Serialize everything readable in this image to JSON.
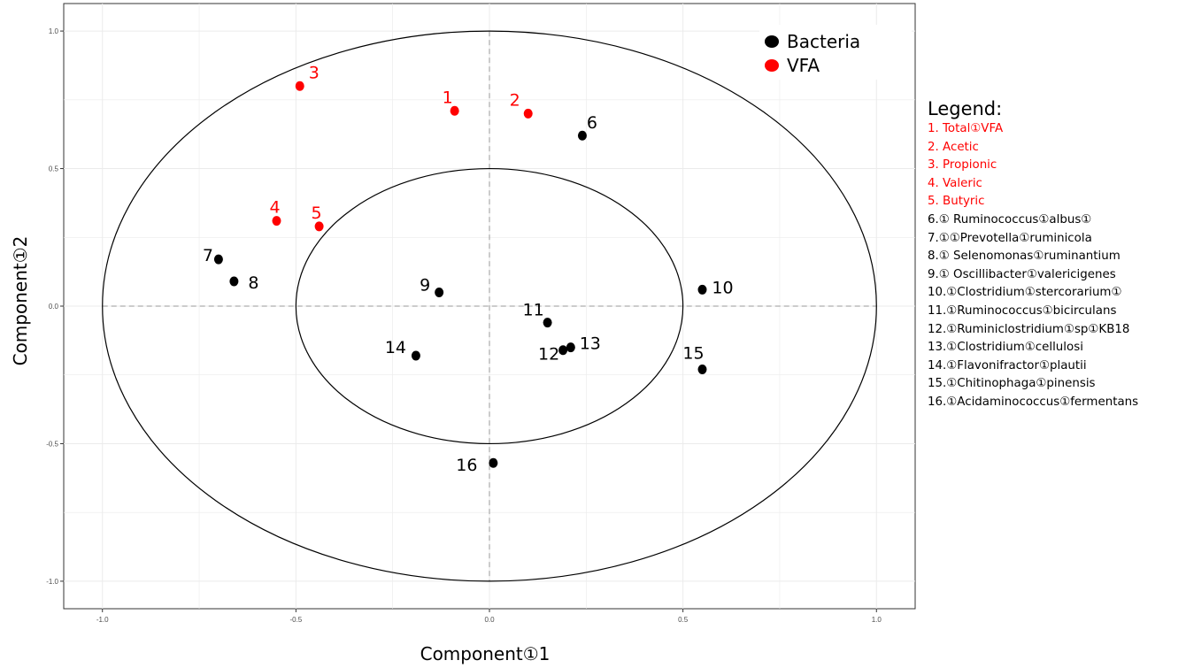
{
  "chart_data": {
    "type": "scatter",
    "xlabel": "Component①1",
    "ylabel": "Component①2",
    "xlim": [
      -1.1,
      1.1
    ],
    "ylim": [
      -1.1,
      1.1
    ],
    "x_ticks": [
      "-1.0",
      "-0.5",
      "0.0",
      "0.5",
      "1.0"
    ],
    "y_ticks": [
      "1.0",
      "0.5",
      "0.0",
      "-0.5",
      "-1.0"
    ],
    "grid": true,
    "reference_lines": {
      "x": 0,
      "y": 0,
      "style": "dashed"
    },
    "circles": [
      {
        "radius": 1.0
      },
      {
        "radius": 0.5
      }
    ],
    "groups": [
      {
        "name": "Bacteria",
        "color": "#000000"
      },
      {
        "name": "VFA",
        "color": "#ff0000"
      }
    ],
    "points": [
      {
        "label": "1",
        "group": "VFA",
        "x": -0.09,
        "y": 0.71
      },
      {
        "label": "2",
        "group": "VFA",
        "x": 0.1,
        "y": 0.7
      },
      {
        "label": "3",
        "group": "VFA",
        "x": -0.49,
        "y": 0.8
      },
      {
        "label": "4",
        "group": "VFA",
        "x": -0.55,
        "y": 0.31
      },
      {
        "label": "5",
        "group": "VFA",
        "x": -0.44,
        "y": 0.29
      },
      {
        "label": "6",
        "group": "Bacteria",
        "x": 0.24,
        "y": 0.62
      },
      {
        "label": "7",
        "group": "Bacteria",
        "x": -0.7,
        "y": 0.17
      },
      {
        "label": "8",
        "group": "Bacteria",
        "x": -0.66,
        "y": 0.09
      },
      {
        "label": "9",
        "group": "Bacteria",
        "x": -0.13,
        "y": 0.05
      },
      {
        "label": "10",
        "group": "Bacteria",
        "x": 0.55,
        "y": 0.06
      },
      {
        "label": "11",
        "group": "Bacteria",
        "x": 0.15,
        "y": -0.06
      },
      {
        "label": "12",
        "group": "Bacteria",
        "x": 0.19,
        "y": -0.16
      },
      {
        "label": "13",
        "group": "Bacteria",
        "x": 0.21,
        "y": -0.15
      },
      {
        "label": "14",
        "group": "Bacteria",
        "x": -0.19,
        "y": -0.18
      },
      {
        "label": "15",
        "group": "Bacteria",
        "x": 0.55,
        "y": -0.23
      },
      {
        "label": "16",
        "group": "Bacteria",
        "x": 0.01,
        "y": -0.57
      }
    ],
    "legend": {
      "placement": "top-right",
      "entries": [
        "Bacteria",
        "VFA"
      ]
    }
  },
  "side_legend": {
    "title": "Legend:",
    "items": [
      {
        "text": "1.  Total①VFA",
        "color": "#ff0000"
      },
      {
        "text": "2.  Acetic",
        "color": "#ff0000"
      },
      {
        "text": "3.  Propionic",
        "color": "#ff0000"
      },
      {
        "text": "4.  Valeric",
        "color": "#ff0000"
      },
      {
        "text": "5.  Butyric",
        "color": "#ff0000"
      },
      {
        "text": "6.① Ruminococcus①albus①",
        "color": "#000000"
      },
      {
        "text": "7.①①Prevotella①ruminicola",
        "color": "#000000"
      },
      {
        "text": "8.① Selenomonas①ruminantium",
        "color": "#000000"
      },
      {
        "text": "9.① Oscillibacter①valericigenes",
        "color": "#000000"
      },
      {
        "text": "10.①Clostridium①stercorarium①",
        "color": "#000000"
      },
      {
        "text": "11.①Ruminococcus①bicirculans",
        "color": "#000000"
      },
      {
        "text": "12.①Ruminiclostridium①sp①KB18",
        "color": "#000000"
      },
      {
        "text": "13.①Clostridium①cellulosi",
        "color": "#000000"
      },
      {
        "text": "14.①Flavonifractor①plautii",
        "color": "#000000"
      },
      {
        "text": "15.①Chitinophaga①pinensis",
        "color": "#000000"
      },
      {
        "text": "16.①Acidaminococcus①fermentans",
        "color": "#000000"
      }
    ]
  }
}
